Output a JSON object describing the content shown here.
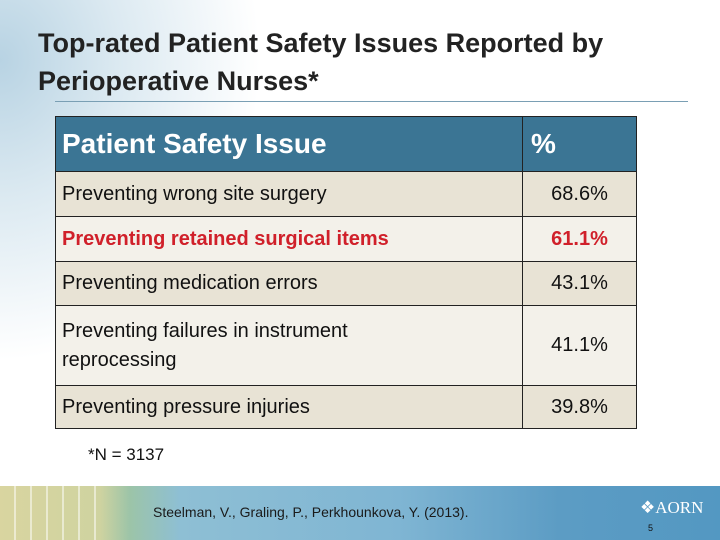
{
  "title": "Top-rated Patient Safety Issues Reported by Perioperative Nurses*",
  "table": {
    "headers": [
      "Patient Safety Issue",
      "%"
    ],
    "rows": [
      {
        "issue": "Preventing wrong site surgery",
        "pct": "68.6%"
      },
      {
        "issue": "Preventing retained surgical items",
        "pct": "61.1%"
      },
      {
        "issue": "Preventing medication errors",
        "pct": "43.1%"
      },
      {
        "issue": "Preventing failures in instrument reprocessing",
        "pct": "41.1%"
      },
      {
        "issue": "Preventing pressure injuries",
        "pct": "39.8%"
      }
    ]
  },
  "note": "*N = 3137",
  "footer": {
    "citation": "Steelman, V., Graling, P., Perkhounkova, Y. (2013).",
    "logo": "AORN",
    "page_number": "5"
  },
  "colors": {
    "header": "#3b7594",
    "highlight": "#d0202a",
    "row_odd": "#e8e3d5",
    "row_even": "#f3f1ea"
  }
}
